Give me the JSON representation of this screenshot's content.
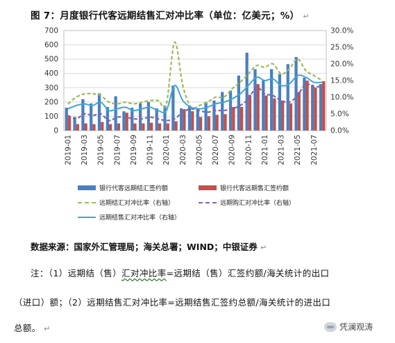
{
  "title": "图 7：月度银行代客远期结售汇对冲比率（单位：亿美元；%）",
  "para_mark": "↵",
  "source_note": "数据来源：国家外汇管理局；海关总署；WIND；中银证券",
  "notes": {
    "line1_prefix": "注：（1）远期结（售）",
    "line1_wavy": "汇对冲比率",
    "line1_suffix": "=远期结（售）汇签约额/海关统计的出口",
    "line2": "（进口）额；（2）远期结售汇对冲比率=远期结售汇签约总额/海关统计的进出口",
    "line3": "总额。"
  },
  "watermark": "凭澜观涛",
  "colors": {
    "bar_settle": "#4a7fbf",
    "bar_sale": "#c0504d",
    "line_settle_ratio": "#9bbb59",
    "line_sale_ratio": "#8064a2",
    "line_total_ratio": "#3da6d6",
    "grid": "#d9d9d9",
    "axis_text": "#333333"
  },
  "chart_data": {
    "type": "bar",
    "categories": [
      "2019-01",
      "2019-02",
      "2019-03",
      "2019-04",
      "2019-05",
      "2019-06",
      "2019-07",
      "2019-08",
      "2019-09",
      "2019-10",
      "2019-11",
      "2019-12",
      "2020-01",
      "2020-02",
      "2020-03",
      "2020-04",
      "2020-05",
      "2020-06",
      "2020-07",
      "2020-08",
      "2020-09",
      "2020-10",
      "2020-11",
      "2020-12",
      "2021-01",
      "2021-02",
      "2021-03",
      "2021-04",
      "2021-05",
      "2021-06",
      "2021-07",
      "2021-08"
    ],
    "x_tick_labels": [
      "2019-01",
      "2019-03",
      "2019-05",
      "2019-07",
      "2019-09",
      "2019-11",
      "2020-01",
      "2020-03",
      "2020-05",
      "2020-07",
      "2020-09",
      "2020-11",
      "2021-01",
      "2021-03",
      "2021-05",
      "2021-07"
    ],
    "y_left": {
      "ticks": [
        0,
        100,
        200,
        300,
        400,
        500,
        600,
        700
      ],
      "range": [
        0,
        700
      ]
    },
    "y_right": {
      "ticks": [
        "0.0%",
        "5.0%",
        "10.0%",
        "15.0%",
        "20.0%",
        "25.0%",
        "30.0%"
      ],
      "range": [
        0,
        30
      ]
    },
    "grid": true,
    "legend_position": "bottom",
    "series": [
      {
        "name": "银行代客远期结汇签约额",
        "kind": "bar",
        "axis": "left",
        "values": [
          160,
          95,
          220,
          190,
          260,
          165,
          240,
          135,
          160,
          190,
          200,
          155,
          175,
          315,
          155,
          175,
          150,
          200,
          210,
          270,
          280,
          385,
          545,
          430,
          350,
          430,
          395,
          465,
          515,
          370,
          320,
          325
        ]
      },
      {
        "name": "银行代客远期售汇签约额",
        "kind": "bar",
        "axis": "left",
        "values": [
          100,
          45,
          50,
          45,
          60,
          45,
          50,
          125,
          50,
          50,
          55,
          50,
          50,
          65,
          150,
          135,
          95,
          100,
          110,
          115,
          165,
          165,
          250,
          325,
          245,
          225,
          210,
          190,
          270,
          350,
          300,
          345
        ]
      },
      {
        "name": "远期结汇对冲比率（右轴）",
        "kind": "line",
        "style": "dashed",
        "axis": "right",
        "values": [
          8.0,
          10.0,
          11.0,
          11.0,
          10.5,
          8.5,
          8.0,
          8.5,
          8.0,
          8.5,
          9.0,
          9.0,
          8.0,
          26.5,
          13.5,
          7.0,
          7.5,
          8.5,
          10.0,
          10.0,
          12.5,
          14.5,
          17.0,
          19.5,
          19.0,
          20.0,
          17.0,
          18.5,
          21.5,
          18.0,
          16.5,
          15.0
        ]
      },
      {
        "name": "远期购汇对冲比率（右轴）",
        "kind": "line",
        "style": "dashed",
        "axis": "right",
        "values": [
          4.5,
          3.5,
          5.0,
          4.5,
          5.0,
          3.0,
          4.0,
          4.0,
          3.5,
          3.5,
          4.0,
          3.5,
          3.0,
          3.5,
          5.5,
          6.5,
          6.0,
          5.5,
          6.0,
          6.0,
          6.5,
          7.5,
          9.5,
          13.0,
          11.0,
          10.5,
          9.0,
          8.5,
          10.5,
          14.0,
          13.0,
          13.5
        ]
      },
      {
        "name": "远期结售汇对冲比率（右轴）",
        "kind": "line",
        "style": "solid",
        "axis": "right",
        "values": [
          6.5,
          7.5,
          8.0,
          7.5,
          8.5,
          6.0,
          6.5,
          7.0,
          6.0,
          6.5,
          7.0,
          6.0,
          6.0,
          13.5,
          9.0,
          7.0,
          6.5,
          7.0,
          8.0,
          8.5,
          9.5,
          11.0,
          13.5,
          16.0,
          15.0,
          15.5,
          13.5,
          14.0,
          16.5,
          16.0,
          14.5,
          14.5
        ]
      }
    ]
  }
}
